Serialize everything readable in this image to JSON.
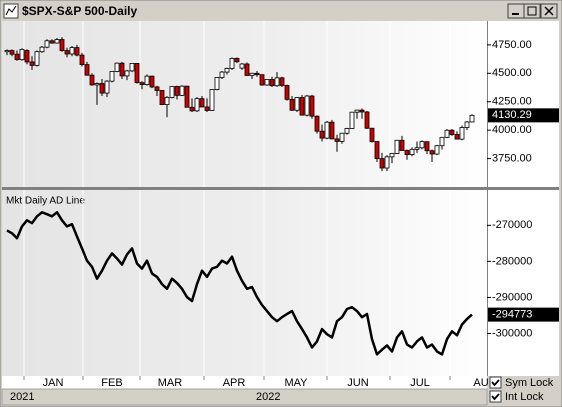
{
  "window": {
    "title": "$SPX-S&P 500-Daily"
  },
  "x_axis": {
    "months": [
      "JAN",
      "FEB",
      "MAR",
      "APR",
      "MAY",
      "JUN",
      "JUL",
      "AU"
    ],
    "years": [
      "2021",
      "2022"
    ]
  },
  "controls": {
    "sym_lock": {
      "label": "Sym Lock",
      "checked": true
    },
    "int_lock": {
      "label": "Int Lock",
      "checked": true
    }
  },
  "chart_data": [
    {
      "type": "candlestick",
      "up_color": "#ffffff",
      "down_color": "#cc0000",
      "ylim": [
        3500,
        4960
      ],
      "yticks": [
        {
          "value": 3750,
          "label": "3750.00"
        },
        {
          "value": 4000,
          "label": "4000.00"
        },
        {
          "value": 4250,
          "label": "4250.00"
        },
        {
          "value": 4500,
          "label": "4500.00"
        },
        {
          "value": 4750,
          "label": "4750.00"
        }
      ],
      "open": [
        4690,
        4700,
        4668,
        4620,
        4700,
        4600,
        4570,
        4690,
        4730,
        4786,
        4766,
        4797,
        4700,
        4670,
        4726,
        4660,
        4577,
        4483,
        4398,
        4410,
        4326,
        4431,
        4516,
        4589,
        4477,
        4521,
        4587,
        4418,
        4401,
        4475,
        4380,
        4349,
        4225,
        4288,
        4384,
        4306,
        4387,
        4201,
        4170,
        4277,
        4204,
        4173,
        4357,
        4463,
        4511,
        4543,
        4631,
        4546,
        4582,
        4481,
        4500,
        4488,
        4397,
        4446,
        4391,
        4460,
        4393,
        4271,
        4175,
        4287,
        4132,
        4300,
        4123,
        3991,
        3930,
        4070,
        3923,
        3901,
        3973,
        4015,
        4158,
        4176,
        4160,
        4017,
        3900,
        3750,
        3667,
        3765,
        3795,
        3911,
        3821,
        3785,
        3831,
        3845,
        3899,
        3819,
        3790,
        3863,
        3937,
        3999,
        3962,
        3921,
        4023,
        4072
      ],
      "high": [
        4710,
        4710,
        4700,
        4720,
        4712,
        4650,
        4700,
        4740,
        4800,
        4800,
        4810,
        4818,
        4725,
        4740,
        4750,
        4680,
        4600,
        4500,
        4420,
        4450,
        4440,
        4520,
        4595,
        4600,
        4530,
        4590,
        4590,
        4430,
        4490,
        4480,
        4390,
        4350,
        4300,
        4385,
        4390,
        4395,
        4390,
        4280,
        4290,
        4300,
        4280,
        4360,
        4465,
        4520,
        4550,
        4640,
        4640,
        4590,
        4595,
        4505,
        4520,
        4490,
        4450,
        4470,
        4510,
        4470,
        4400,
        4300,
        4290,
        4310,
        4310,
        4310,
        4130,
        4050,
        4080,
        4090,
        3960,
        3975,
        4020,
        4160,
        4180,
        4190,
        4170,
        4020,
        3900,
        3800,
        3780,
        3800,
        3915,
        3950,
        3830,
        3850,
        3900,
        3910,
        3900,
        3830,
        3870,
        3940,
        4010,
        4010,
        3990,
        4040,
        4080,
        4140
      ],
      "low": [
        4660,
        4650,
        4610,
        4610,
        4580,
        4530,
        4560,
        4680,
        4720,
        4760,
        4760,
        4690,
        4640,
        4650,
        4650,
        4560,
        4480,
        4390,
        4222,
        4300,
        4290,
        4420,
        4510,
        4450,
        4440,
        4510,
        4410,
        4360,
        4390,
        4370,
        4300,
        4220,
        4114,
        4280,
        4270,
        4300,
        4200,
        4160,
        4160,
        4200,
        4160,
        4170,
        4350,
        4450,
        4490,
        4530,
        4590,
        4530,
        4480,
        4450,
        4470,
        4390,
        4390,
        4380,
        4380,
        4380,
        4260,
        4170,
        4160,
        4130,
        4120,
        4100,
        3970,
        3900,
        3920,
        3920,
        3810,
        3880,
        3960,
        4010,
        4100,
        4100,
        4010,
        3890,
        3720,
        3640,
        3640,
        3710,
        3790,
        3820,
        3740,
        3770,
        3800,
        3830,
        3790,
        3720,
        3780,
        3830,
        3930,
        3950,
        3920,
        3910,
        4000,
        4070
      ],
      "close": [
        4701,
        4668,
        4620,
        4710,
        4600,
        4570,
        4690,
        4730,
        4786,
        4766,
        4797,
        4700,
        4670,
        4726,
        4660,
        4577,
        4483,
        4398,
        4410,
        4326,
        4431,
        4516,
        4589,
        4477,
        4521,
        4587,
        4418,
        4401,
        4475,
        4380,
        4349,
        4225,
        4288,
        4384,
        4306,
        4387,
        4201,
        4170,
        4277,
        4204,
        4173,
        4357,
        4463,
        4511,
        4543,
        4631,
        4602,
        4582,
        4481,
        4500,
        4488,
        4397,
        4446,
        4391,
        4460,
        4393,
        4271,
        4175,
        4287,
        4132,
        4300,
        4123,
        3991,
        3930,
        4070,
        3923,
        3901,
        3973,
        4015,
        4158,
        4176,
        4160,
        4017,
        3900,
        3750,
        3667,
        3765,
        3795,
        3911,
        3821,
        3785,
        3831,
        3845,
        3899,
        3819,
        3790,
        3863,
        3937,
        3999,
        3962,
        3921,
        4023,
        4072,
        4130.29
      ]
    },
    {
      "type": "line",
      "title": "Mkt Daily AD Line",
      "color": "#000000",
      "ylim": [
        -311800,
        -260200
      ],
      "yticks": [
        -300000,
        -290000,
        -280000,
        -270000
      ],
      "values": [
        -271400,
        -272200,
        -273600,
        -270300,
        -268600,
        -269400,
        -267500,
        -266400,
        -266900,
        -267500,
        -266400,
        -268600,
        -270300,
        -269700,
        -273100,
        -276400,
        -279800,
        -281500,
        -284800,
        -282600,
        -279800,
        -277800,
        -279200,
        -280900,
        -278100,
        -276400,
        -280600,
        -282000,
        -279800,
        -283400,
        -284300,
        -286300,
        -287600,
        -284800,
        -286000,
        -287600,
        -289900,
        -291000,
        -286300,
        -282600,
        -284300,
        -282000,
        -281500,
        -279800,
        -280600,
        -278700,
        -282600,
        -285400,
        -287600,
        -287100,
        -289900,
        -292100,
        -293800,
        -295500,
        -296600,
        -295500,
        -294600,
        -293800,
        -296600,
        -298800,
        -301100,
        -303900,
        -302200,
        -298800,
        -300200,
        -301100,
        -296600,
        -295500,
        -293200,
        -292700,
        -293800,
        -295500,
        -294600,
        -301600,
        -305800,
        -304500,
        -303300,
        -305000,
        -301100,
        -299400,
        -303100,
        -303900,
        -302200,
        -301100,
        -303900,
        -303100,
        -305000,
        -305800,
        -301600,
        -299400,
        -300500,
        -297500,
        -296000,
        -294773
      ]
    }
  ]
}
